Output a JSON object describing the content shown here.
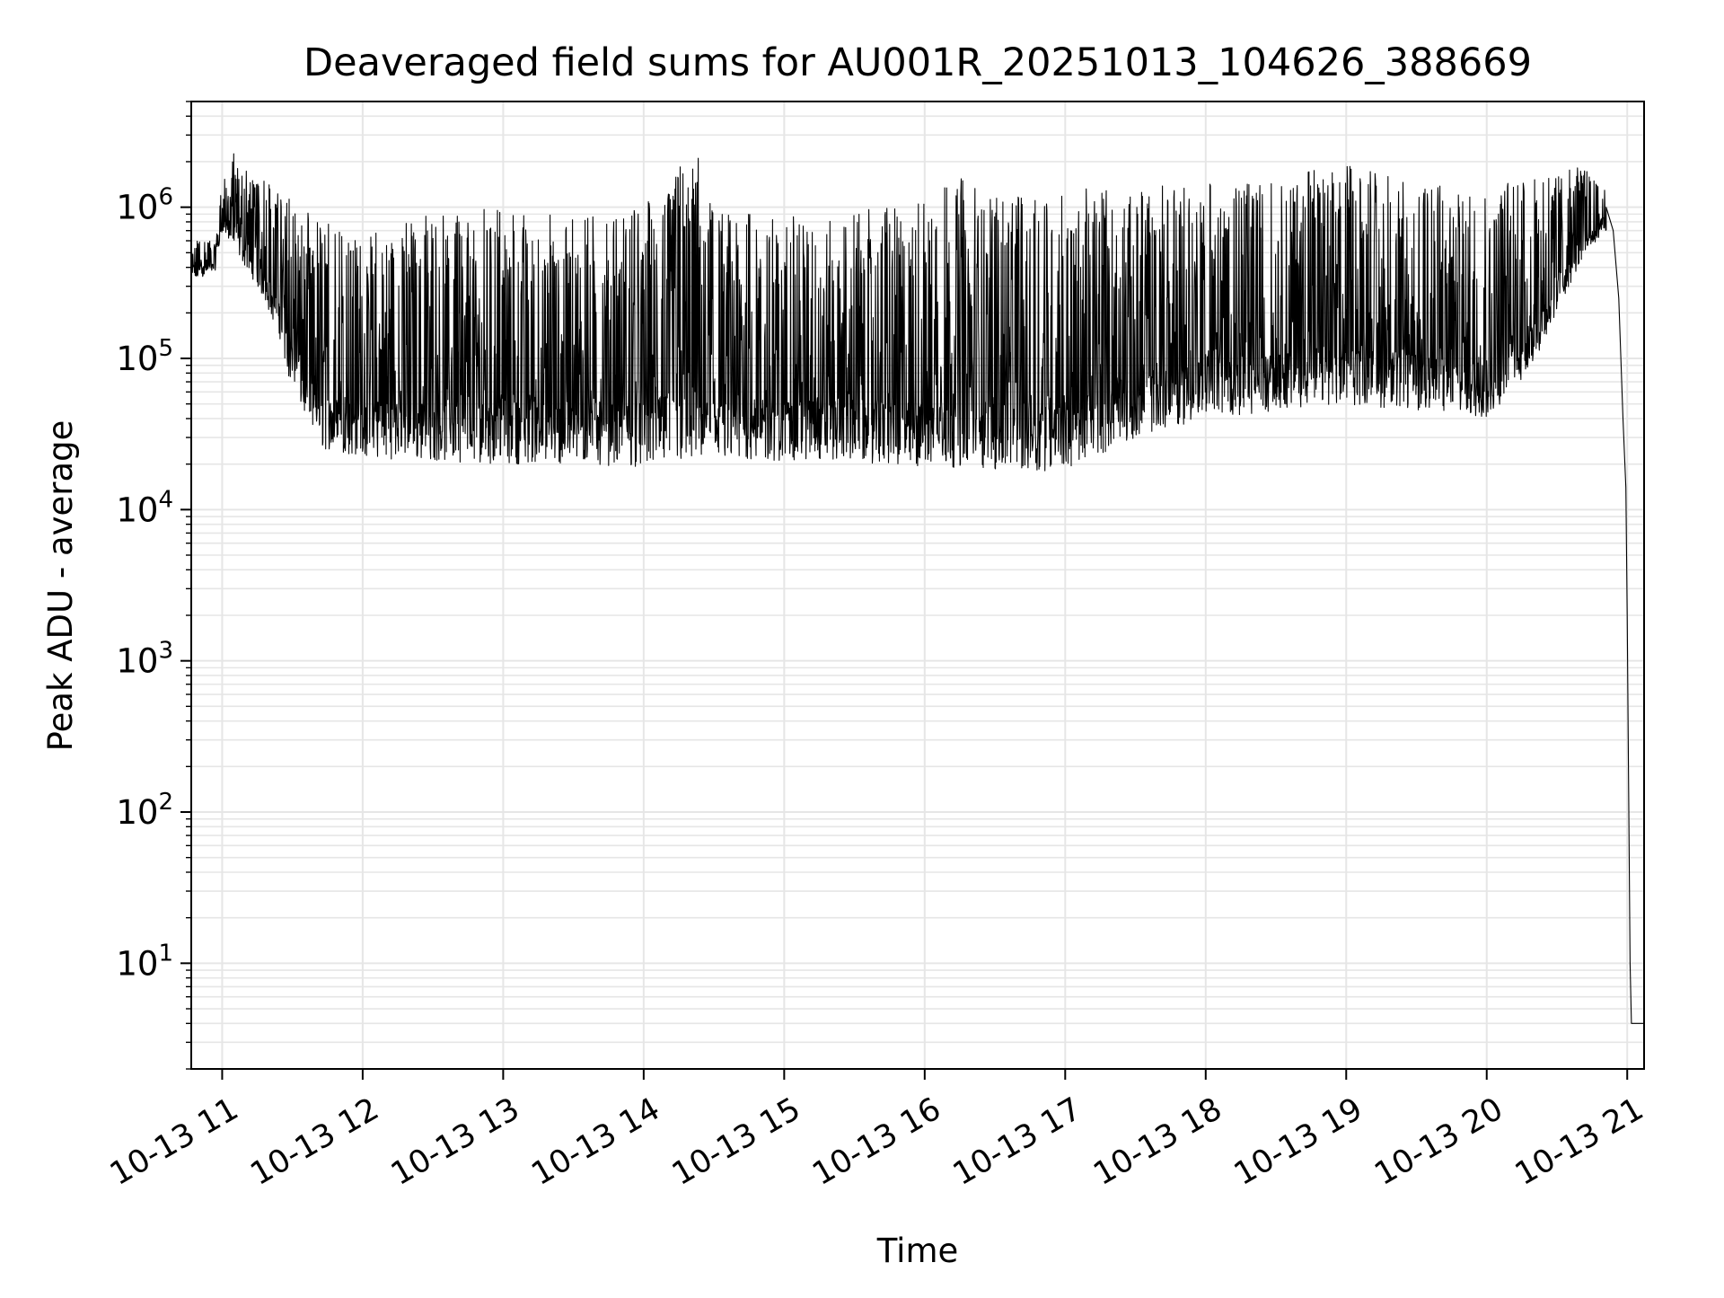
{
  "chart_data": {
    "type": "line",
    "title": "Deaveraged field sums for AU001R_20251013_104626_388669",
    "xlabel": "Time",
    "ylabel": "Peak ADU - average",
    "yscale": "log",
    "grid": true,
    "grid_minor": true,
    "legend": "none",
    "line_color": "#000000",
    "grid_color": "#e6e6e6",
    "xlim_hours": [
      10.78,
      21.12
    ],
    "ylim": [
      2,
      5000000
    ],
    "x_ticks": [
      {
        "hour": 11,
        "label": "10-13 11"
      },
      {
        "hour": 12,
        "label": "10-13 12"
      },
      {
        "hour": 13,
        "label": "10-13 13"
      },
      {
        "hour": 14,
        "label": "10-13 14"
      },
      {
        "hour": 15,
        "label": "10-13 15"
      },
      {
        "hour": 16,
        "label": "10-13 16"
      },
      {
        "hour": 17,
        "label": "10-13 17"
      },
      {
        "hour": 18,
        "label": "10-13 18"
      },
      {
        "hour": 19,
        "label": "10-13 19"
      },
      {
        "hour": 20,
        "label": "10-13 20"
      },
      {
        "hour": 21,
        "label": "10-13 21"
      }
    ],
    "y_ticks": [
      {
        "value": 10,
        "base": "10",
        "exp": "1"
      },
      {
        "value": 100,
        "base": "10",
        "exp": "2"
      },
      {
        "value": 1000,
        "base": "10",
        "exp": "3"
      },
      {
        "value": 10000,
        "base": "10",
        "exp": "4"
      },
      {
        "value": 100000,
        "base": "10",
        "exp": "5"
      },
      {
        "value": 1000000,
        "base": "10",
        "exp": "6"
      }
    ],
    "series": [
      {
        "envelope": [
          {
            "hour": 10.78,
            "low": 320000,
            "high": 600000
          },
          {
            "hour": 10.95,
            "low": 380000,
            "high": 650000
          },
          {
            "hour": 11.0,
            "low": 700000,
            "high": 1500000
          },
          {
            "hour": 11.1,
            "low": 500000,
            "high": 2500000
          },
          {
            "hour": 11.25,
            "low": 300000,
            "high": 1700000
          },
          {
            "hour": 11.4,
            "low": 150000,
            "high": 1300000
          },
          {
            "hour": 11.5,
            "low": 60000,
            "high": 1100000
          },
          {
            "hour": 11.7,
            "low": 25000,
            "high": 800000
          },
          {
            "hour": 12.0,
            "low": 22000,
            "high": 700000
          },
          {
            "hour": 12.5,
            "low": 21000,
            "high": 900000
          },
          {
            "hour": 13.0,
            "low": 20000,
            "high": 1000000
          },
          {
            "hour": 13.5,
            "low": 20000,
            "high": 900000
          },
          {
            "hour": 14.0,
            "low": 19000,
            "high": 1000000
          },
          {
            "hour": 14.38,
            "low": 20000,
            "high": 2700000
          },
          {
            "hour": 14.5,
            "low": 20000,
            "high": 900000
          },
          {
            "hour": 15.0,
            "low": 21000,
            "high": 900000
          },
          {
            "hour": 15.5,
            "low": 21000,
            "high": 1000000
          },
          {
            "hour": 16.0,
            "low": 18000,
            "high": 1100000
          },
          {
            "hour": 16.2,
            "low": 19000,
            "high": 1700000
          },
          {
            "hour": 16.5,
            "low": 18000,
            "high": 1200000
          },
          {
            "hour": 17.0,
            "low": 18000,
            "high": 1300000
          },
          {
            "hour": 17.5,
            "low": 30000,
            "high": 1400000
          },
          {
            "hour": 18.0,
            "low": 40000,
            "high": 1450000
          },
          {
            "hour": 18.5,
            "low": 45000,
            "high": 1500000
          },
          {
            "hour": 18.92,
            "low": 50000,
            "high": 2100000
          },
          {
            "hour": 19.5,
            "low": 45000,
            "high": 1400000
          },
          {
            "hour": 20.0,
            "low": 40000,
            "high": 1400000
          },
          {
            "hour": 20.3,
            "low": 80000,
            "high": 1500000
          },
          {
            "hour": 20.7,
            "low": 500000,
            "high": 1900000
          },
          {
            "hour": 20.85,
            "low": 700000,
            "high": 1300000
          }
        ],
        "tail": [
          {
            "hour": 20.85,
            "value": 1000000
          },
          {
            "hour": 20.9,
            "value": 700000
          },
          {
            "hour": 20.94,
            "value": 250000
          },
          {
            "hour": 20.97,
            "value": 40000
          },
          {
            "hour": 20.99,
            "value": 14000
          },
          {
            "hour": 21.0,
            "value": 2000
          },
          {
            "hour": 21.02,
            "value": 10
          },
          {
            "hour": 21.03,
            "value": 4
          },
          {
            "hour": 21.12,
            "value": 4
          }
        ]
      }
    ]
  }
}
